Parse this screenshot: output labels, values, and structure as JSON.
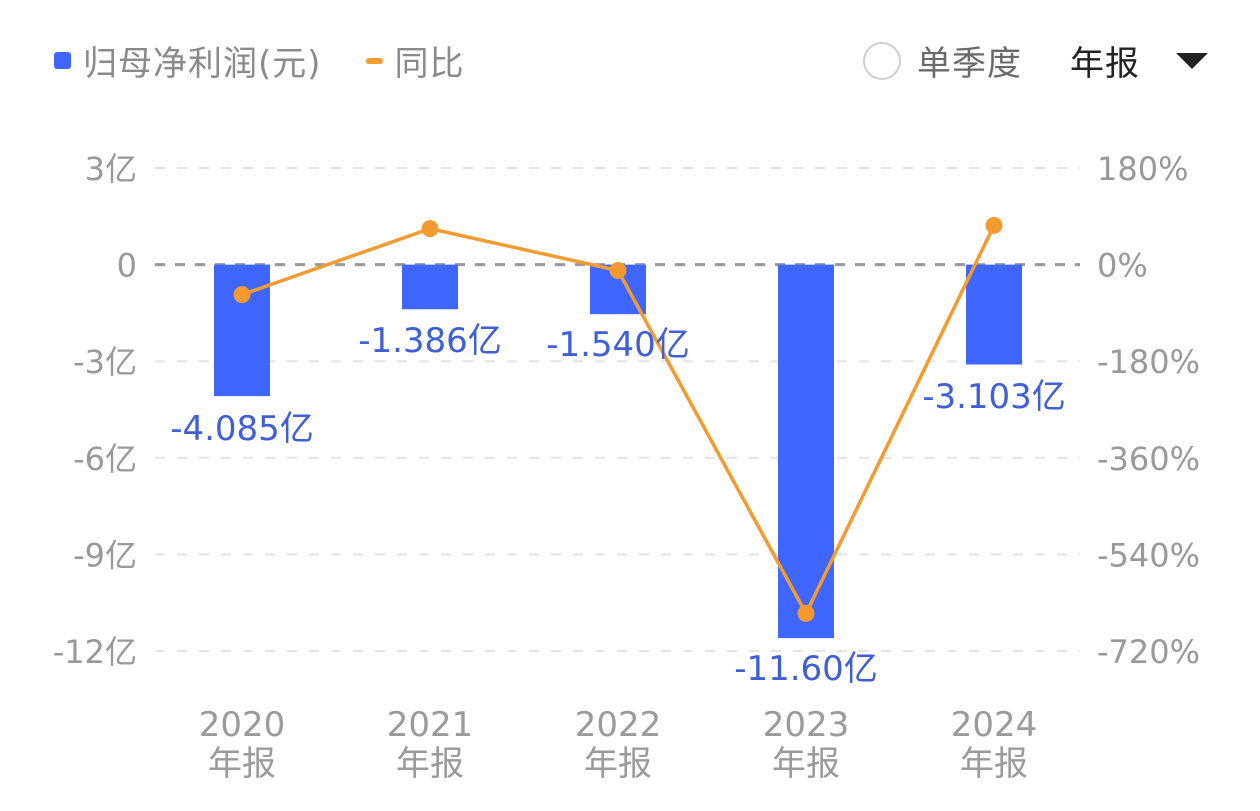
{
  "legend": {
    "bar_label": "归母净利润(元)",
    "line_label": "同比"
  },
  "controls": {
    "quarterly_label": "单季度",
    "quarterly_checked": false,
    "period_selected": "年报"
  },
  "colors": {
    "bar": "#3f67ff",
    "line": "#f39b30",
    "value_label": "#3e5fd6",
    "axis_text": "#999999"
  },
  "chart_data": {
    "type": "bar",
    "title": "",
    "categories": [
      "2020\n年报",
      "2021\n年报",
      "2022\n年报",
      "2023\n年报",
      "2024\n年报"
    ],
    "category_years": [
      "2020",
      "2021",
      "2022",
      "2023",
      "2024"
    ],
    "category_suffix": "年报",
    "series": [
      {
        "name": "归母净利润(元)",
        "type": "bar",
        "axis": "left",
        "unit": "亿",
        "values": [
          -4.085,
          -1.386,
          -1.54,
          -11.6,
          -3.103
        ],
        "labels": [
          "-4.085亿",
          "-1.386亿",
          "-1.540亿",
          "-11.60亿",
          "-3.103亿"
        ]
      },
      {
        "name": "同比",
        "type": "line",
        "axis": "right",
        "unit": "%",
        "values": [
          -56,
          67,
          -11,
          -650,
          73
        ]
      }
    ],
    "left_axis": {
      "ticks": [
        3,
        0,
        -3,
        -6,
        -9,
        -12
      ],
      "tick_labels": [
        "3亿",
        "0",
        "-3亿",
        "-6亿",
        "-9亿",
        "-12亿"
      ],
      "ylim": [
        -12,
        3
      ]
    },
    "right_axis": {
      "ticks": [
        180,
        0,
        -180,
        -360,
        -540,
        -720
      ],
      "tick_labels": [
        "180%",
        "0%",
        "-180%",
        "-360%",
        "-540%",
        "-720%"
      ],
      "ylim": [
        -720,
        180
      ]
    },
    "grid": true,
    "legend_position": "top-left"
  }
}
